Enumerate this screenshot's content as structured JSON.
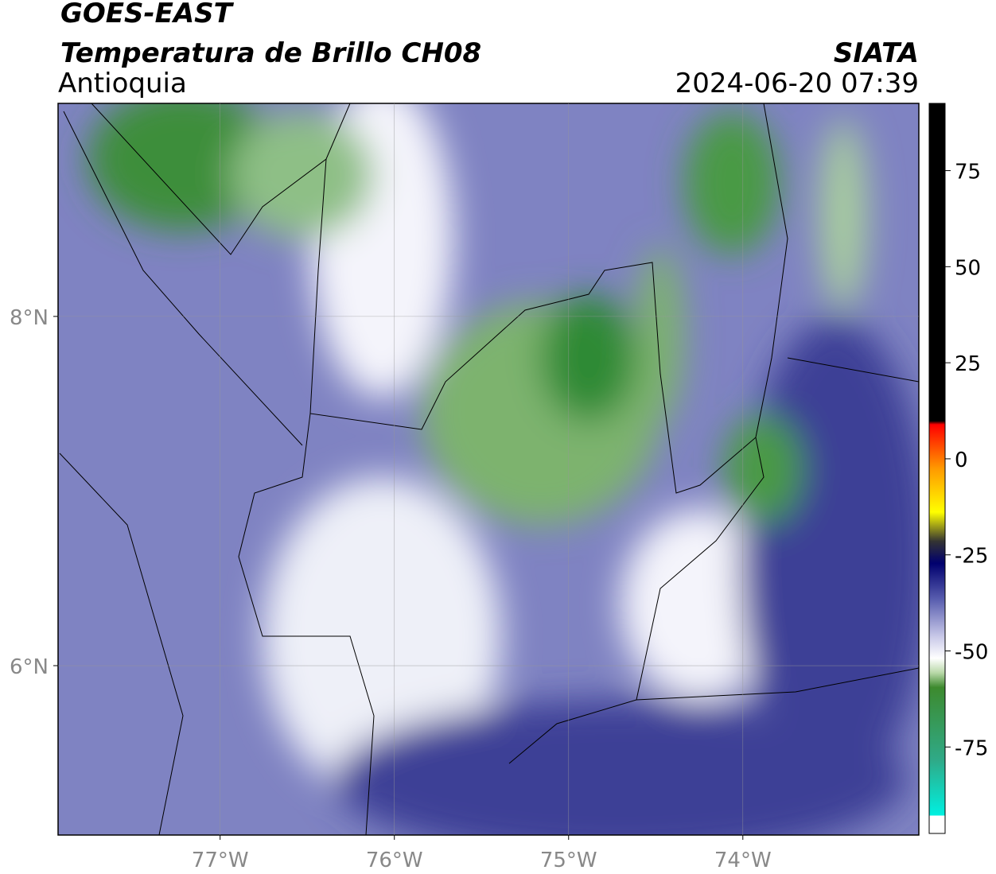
{
  "header": {
    "line1": "GOES-EAST",
    "title": "Temperatura de Brillo CH08",
    "region": "Antioquia",
    "source": "SIATA",
    "datetime": "2024-06-20 07:39"
  },
  "map": {
    "xlim": [
      -77.93,
      -72.99
    ],
    "ylim": [
      5.03,
      9.22
    ],
    "xticks": [
      {
        "value": -77,
        "label": "77°W"
      },
      {
        "value": -76,
        "label": "76°W"
      },
      {
        "value": -75,
        "label": "75°W"
      },
      {
        "value": -74,
        "label": "74°W"
      }
    ],
    "yticks": [
      {
        "value": 8,
        "label": "8°N"
      },
      {
        "value": 6,
        "label": "6°N"
      }
    ],
    "grid": true
  },
  "colorbar": {
    "lim": [
      -97.5,
      92.5
    ],
    "ticks": [
      75,
      50,
      25,
      0,
      -25,
      -50,
      -75
    ]
  }
}
